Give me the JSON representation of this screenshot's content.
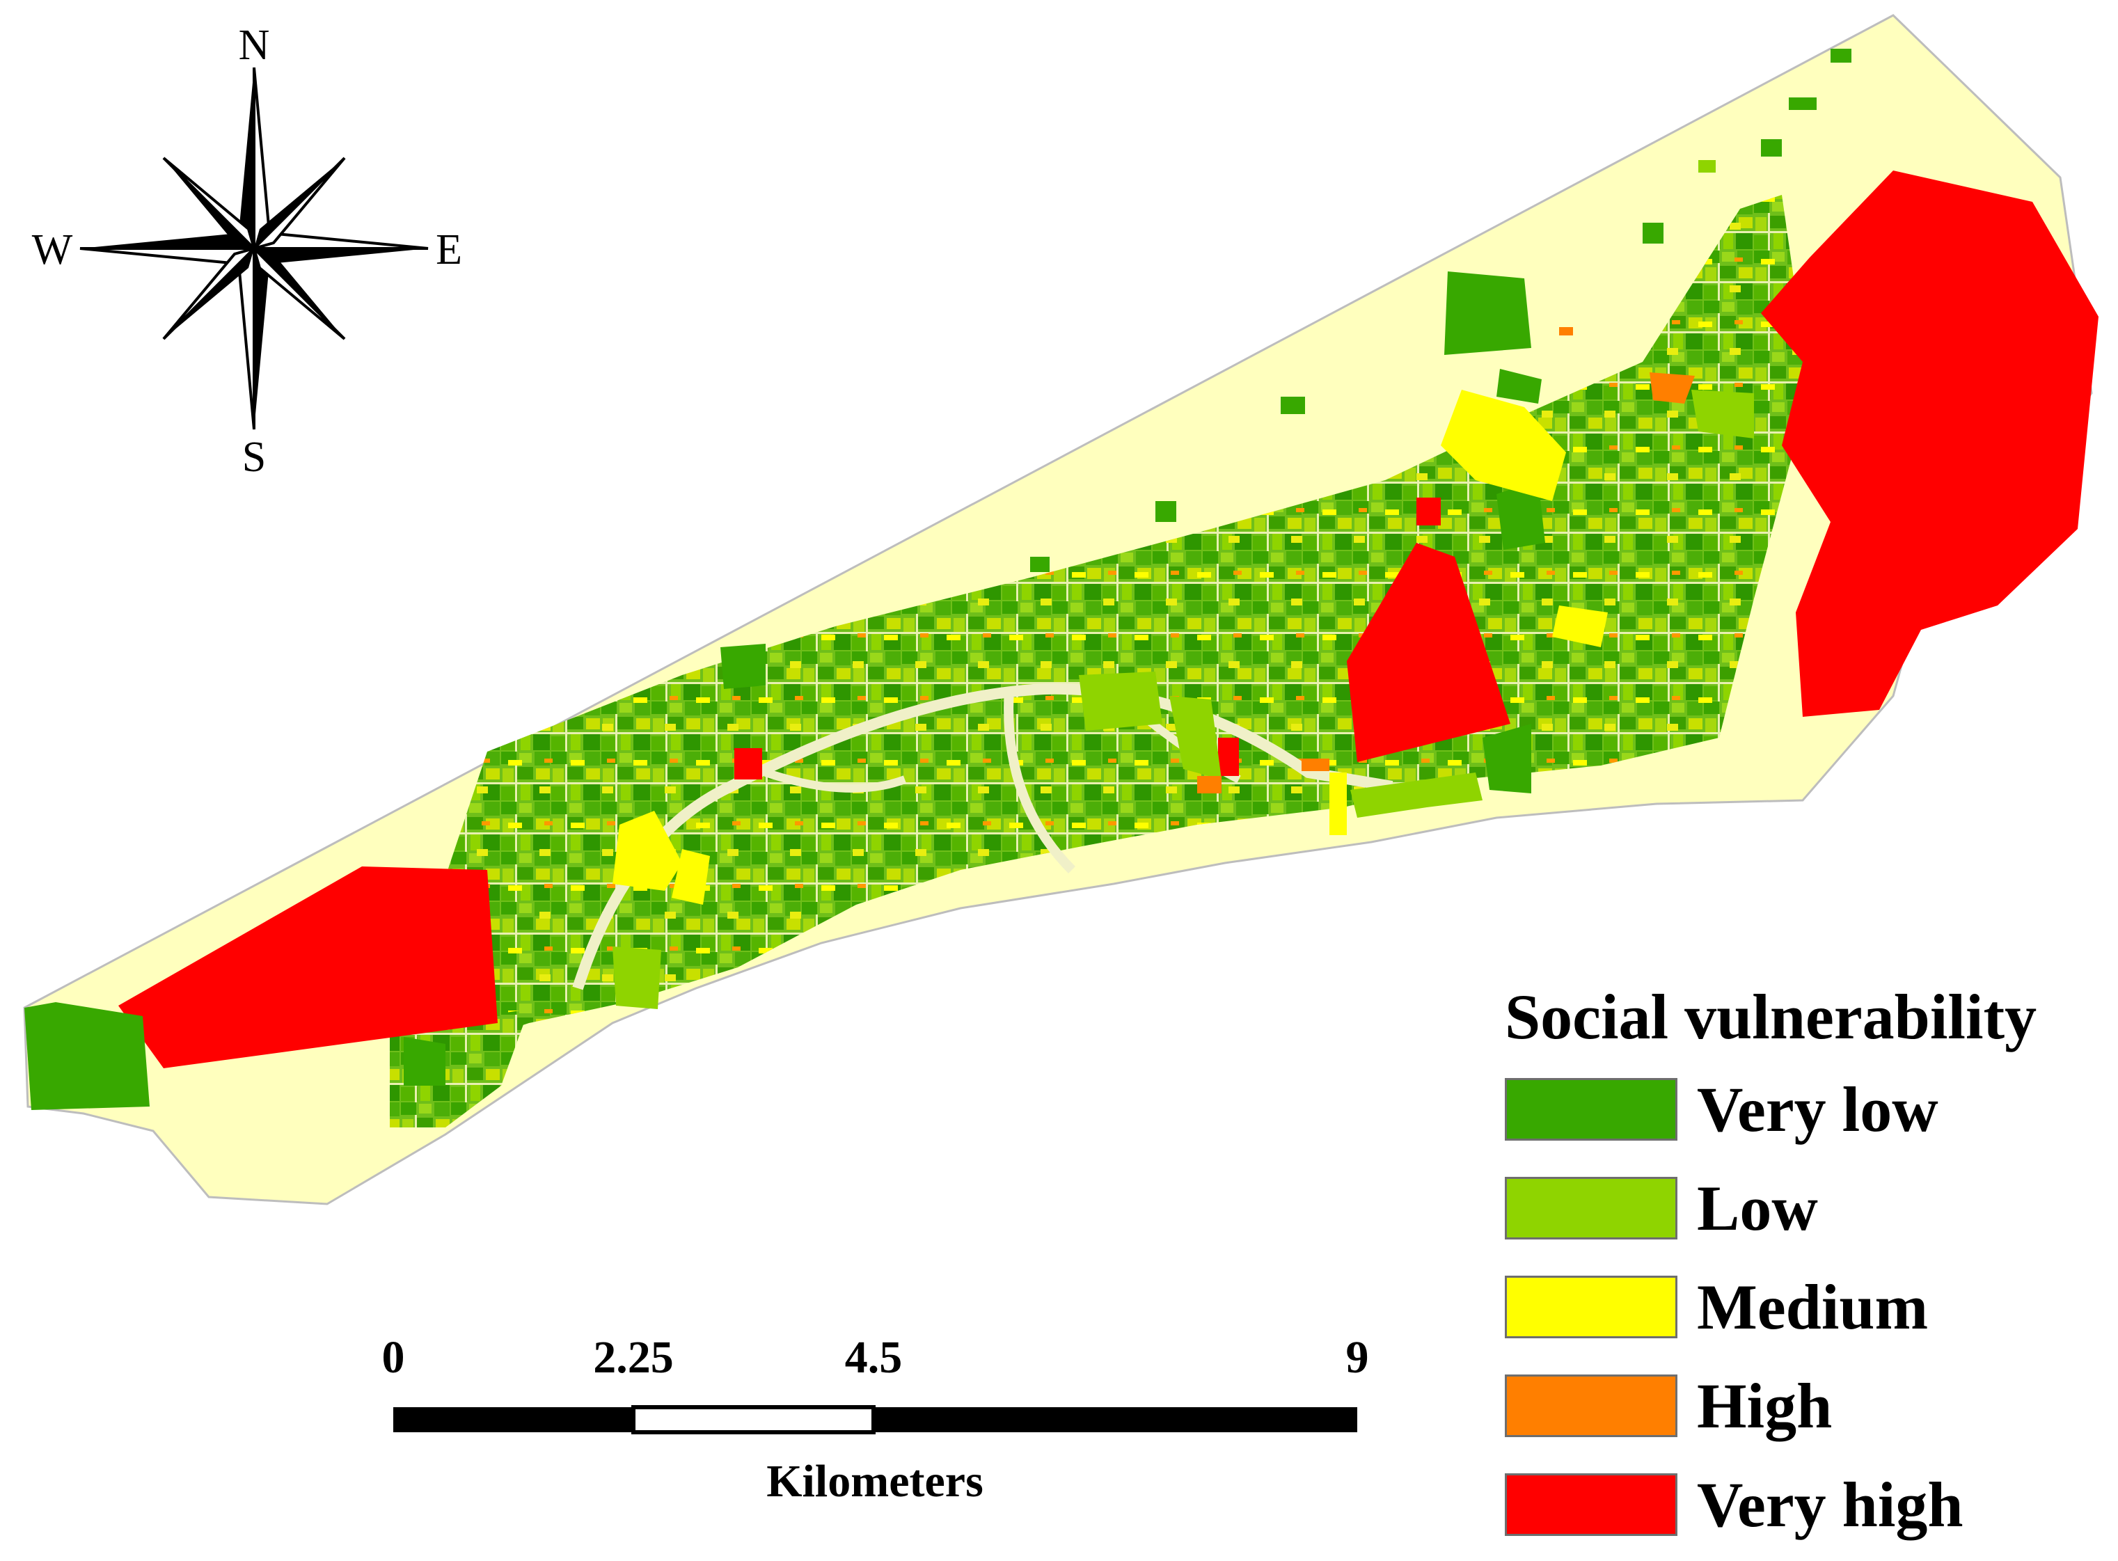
{
  "compass": {
    "north": "N",
    "south": "S",
    "east": "E",
    "west": "W"
  },
  "legend": {
    "title": "Social vulnerability",
    "items": [
      {
        "label": "Very low",
        "color": "#38a800"
      },
      {
        "label": "Low",
        "color": "#8fd400"
      },
      {
        "label": "Medium",
        "color": "#ffff00"
      },
      {
        "label": "High",
        "color": "#ff7f00"
      },
      {
        "label": "Very high",
        "color": "#ff0000"
      }
    ]
  },
  "scale_bar": {
    "ticks": [
      "0",
      "2.25",
      "4.5",
      "9"
    ],
    "unit": "Kilometers"
  },
  "colors": {
    "study_area": "#ffffbe",
    "road": "#f0f0c8"
  }
}
